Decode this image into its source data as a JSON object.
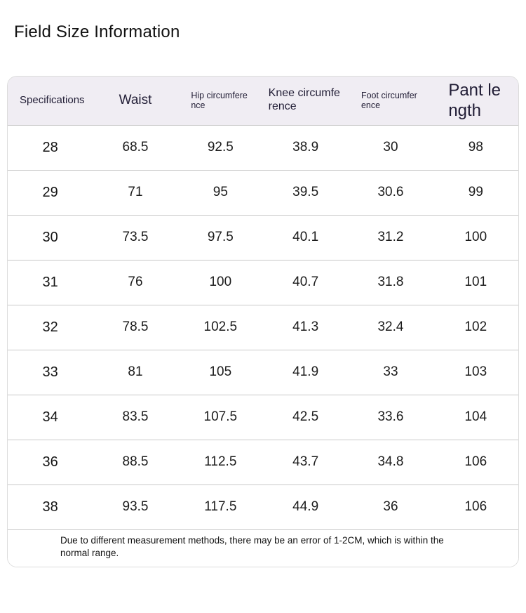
{
  "page": {
    "title": "Field Size Information"
  },
  "table": {
    "headers": [
      "Specifications",
      "Waist",
      "Hip circumference",
      "Knee circumference",
      "Foot circumference",
      "Pant length"
    ],
    "rows": [
      [
        "28",
        "68.5",
        "92.5",
        "38.9",
        "30",
        "98"
      ],
      [
        "29",
        "71",
        "95",
        "39.5",
        "30.6",
        "99"
      ],
      [
        "30",
        "73.5",
        "97.5",
        "40.1",
        "31.2",
        "100"
      ],
      [
        "31",
        "76",
        "100",
        "40.7",
        "31.8",
        "101"
      ],
      [
        "32",
        "78.5",
        "102.5",
        "41.3",
        "32.4",
        "102"
      ],
      [
        "33",
        "81",
        "105",
        "41.9",
        "33",
        "103"
      ],
      [
        "34",
        "83.5",
        "107.5",
        "42.5",
        "33.6",
        "104"
      ],
      [
        "36",
        "88.5",
        "112.5",
        "43.7",
        "34.8",
        "106"
      ],
      [
        "38",
        "93.5",
        "117.5",
        "44.9",
        "36",
        "106"
      ]
    ],
    "note": "Due to different measurement methods, there may be an error of 1-2CM, which is within the normal range.",
    "colors": {
      "header_bg": "#f0edf3",
      "header_text": "#211d35",
      "row_separator": "#c9c9c9",
      "outer_border": "#dcdcdc",
      "body_text": "#1c1c1c"
    }
  }
}
